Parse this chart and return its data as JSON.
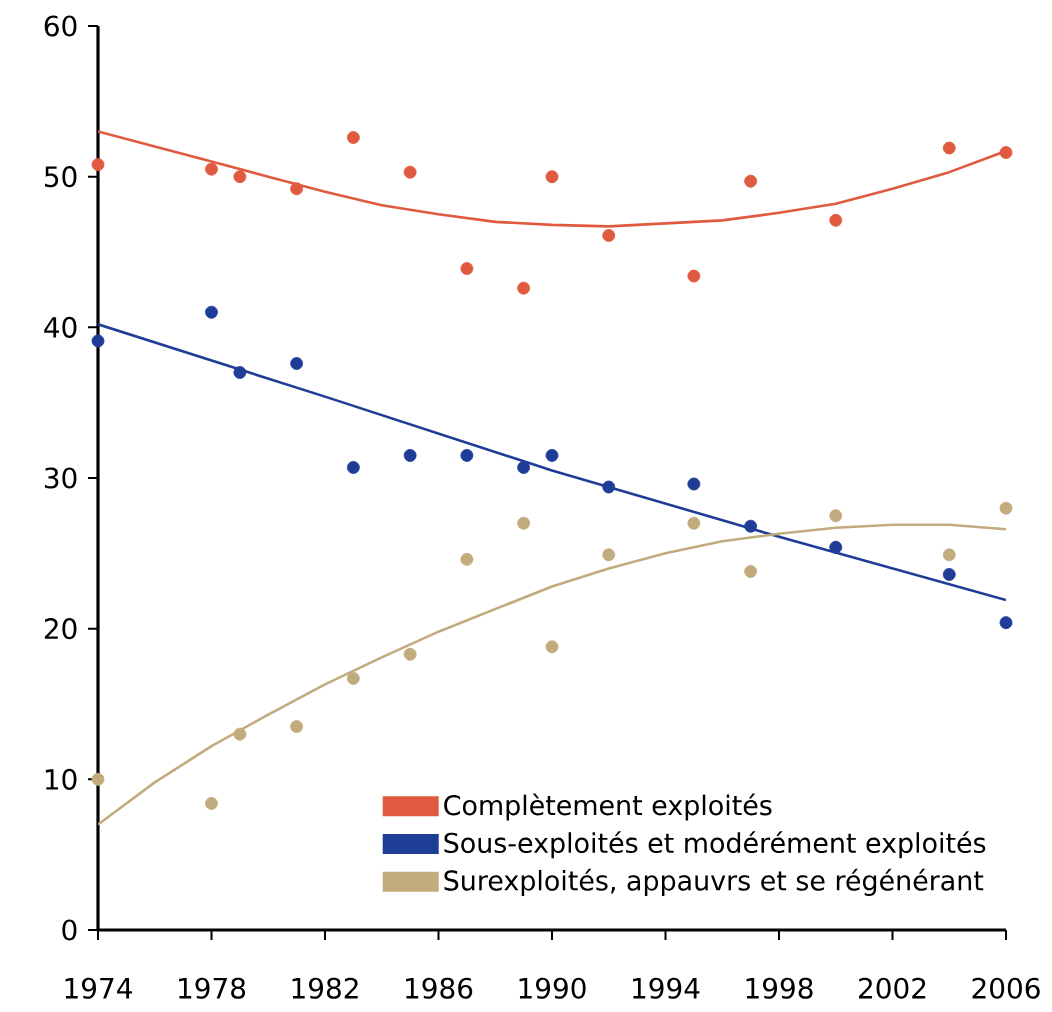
{
  "chart_data": {
    "type": "scatter",
    "xlim": [
      1974,
      2006
    ],
    "xticks": [
      1974,
      1978,
      1982,
      1986,
      1990,
      1994,
      1998,
      2002,
      2006
    ],
    "ylim": [
      0,
      60
    ],
    "yticks": [
      0,
      10,
      20,
      30,
      40,
      50,
      60
    ],
    "grid": false,
    "legend": "bottom right",
    "marker": "circle",
    "series": [
      {
        "name": "Complètement exploités",
        "color": "#e05a3f",
        "x": [
          1974,
          1978,
          1979,
          1981,
          1983,
          1985,
          1987,
          1989,
          1990,
          1992,
          1995,
          1997,
          2000,
          2004,
          2006
        ],
        "values": [
          50.8,
          50.5,
          50.0,
          49.2,
          52.6,
          50.3,
          43.9,
          42.6,
          50.0,
          46.1,
          43.4,
          49.7,
          47.1,
          51.9,
          51.6
        ]
      },
      {
        "name": "Sous-exploités et modérément exploités",
        "color": "#1f3c96",
        "x": [
          1974,
          1978,
          1979,
          1981,
          1983,
          1985,
          1987,
          1989,
          1990,
          1992,
          1995,
          1997,
          2000,
          2004,
          2006
        ],
        "values": [
          39.1,
          41.0,
          37.0,
          37.6,
          30.7,
          31.5,
          31.5,
          30.7,
          31.5,
          29.4,
          29.6,
          26.8,
          25.4,
          23.6,
          20.4
        ]
      },
      {
        "name": "Surexploités, appauvrs et se régénérant",
        "color": "#c2ab7d",
        "x": [
          1974,
          1978,
          1979,
          1981,
          1983,
          1985,
          1987,
          1989,
          1990,
          1992,
          1995,
          1997,
          2000,
          2004,
          2006
        ],
        "values": [
          10.0,
          8.4,
          13.0,
          13.5,
          16.7,
          18.3,
          24.6,
          27.0,
          18.8,
          24.9,
          27.0,
          23.8,
          27.5,
          24.9,
          28.0
        ]
      },
      {
        "color": "#e05a3f",
        "type": "line",
        "marker": "none",
        "x": [
          1974,
          1976,
          1978,
          1980,
          1982,
          1984,
          1986,
          1988,
          1990,
          1992,
          1994,
          1996,
          1998,
          2000,
          2002,
          2004,
          2006
        ],
        "values": [
          53.0,
          52.0,
          51.0,
          50.0,
          49.0,
          48.1,
          47.5,
          47.0,
          46.8,
          46.7,
          46.9,
          47.1,
          47.6,
          48.2,
          49.2,
          50.3,
          51.7
        ]
      },
      {
        "color": "#1f3c96",
        "type": "line",
        "marker": "none",
        "x": [
          1974,
          1982,
          1990,
          1998,
          2006
        ],
        "values": [
          40.2,
          35.4,
          30.5,
          26.1,
          21.9
        ]
      },
      {
        "color": "#c2ab7d",
        "type": "line",
        "marker": "none",
        "x": [
          1974,
          1976,
          1978,
          1980,
          1982,
          1984,
          1986,
          1988,
          1990,
          1992,
          1994,
          1996,
          1998,
          2000,
          2002,
          2004,
          2006
        ],
        "values": [
          7.0,
          9.8,
          12.2,
          14.3,
          16.3,
          18.1,
          19.8,
          21.3,
          22.8,
          24.0,
          25.0,
          25.8,
          26.3,
          26.7,
          26.9,
          26.9,
          26.6
        ]
      }
    ]
  }
}
